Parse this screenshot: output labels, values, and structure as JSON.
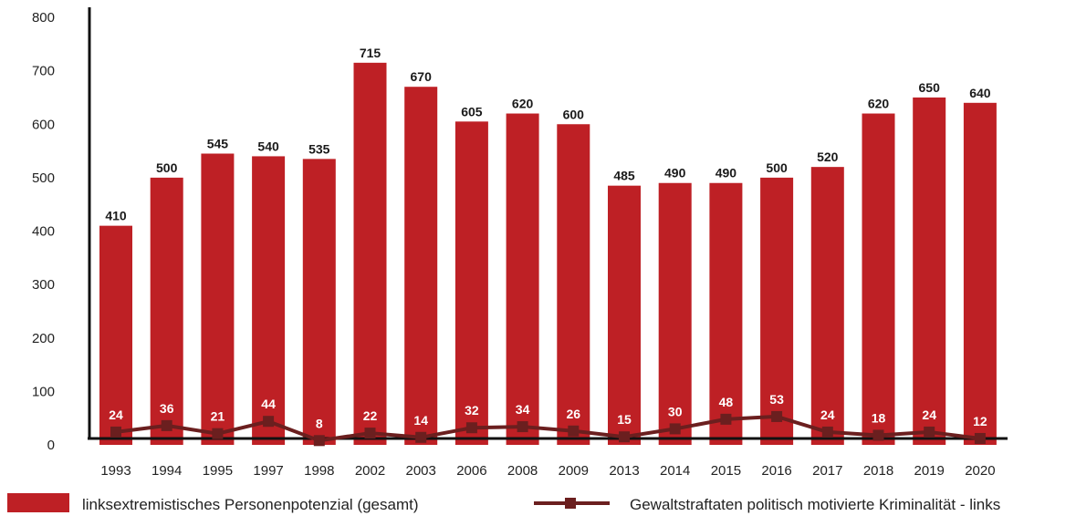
{
  "chart_data": {
    "type": "bar",
    "categories": [
      "1993",
      "1994",
      "1995",
      "1997",
      "1998",
      "2002",
      "2003",
      "2006",
      "2008",
      "2009",
      "2013",
      "2014",
      "2015",
      "2016",
      "2017",
      "2018",
      "2019",
      "2020"
    ],
    "series": [
      {
        "name": "linksextremistisches Personenpotenzial (gesamt)",
        "type": "bar",
        "color": "#be2025",
        "values": [
          410,
          500,
          545,
          540,
          535,
          715,
          670,
          605,
          620,
          600,
          485,
          490,
          490,
          500,
          520,
          620,
          650,
          640
        ]
      },
      {
        "name": "Gewaltstraftaten politisch motivierte Kriminalität - links",
        "type": "line",
        "color": "#6b1f1f",
        "values": [
          24,
          36,
          21,
          44,
          8,
          22,
          14,
          32,
          34,
          26,
          15,
          30,
          48,
          53,
          24,
          18,
          24,
          12
        ]
      }
    ],
    "ylim": [
      0,
      800
    ],
    "yticks": [
      0,
      100,
      200,
      300,
      400,
      500,
      600,
      700,
      800
    ],
    "grid": false,
    "legend_position": "bottom"
  }
}
